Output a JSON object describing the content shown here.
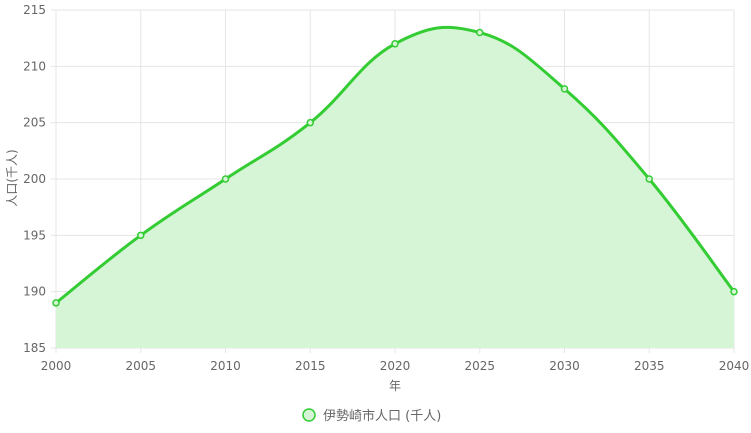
{
  "chart_data": {
    "type": "area",
    "x": [
      2000,
      2005,
      2010,
      2015,
      2020,
      2025,
      2030,
      2035,
      2040
    ],
    "series": [
      {
        "name": "伊勢崎市人口 (千人)",
        "values": [
          189,
          195,
          200,
          205,
          212,
          213,
          208,
          200,
          190
        ],
        "line_color": "#33cc33",
        "fill_color": "#d6f5d6"
      }
    ],
    "xlabel": "年",
    "ylabel": "人口(千人)",
    "xlim": [
      2000,
      2040
    ],
    "ylim": [
      185,
      215
    ],
    "x_ticks": [
      2000,
      2005,
      2010,
      2015,
      2020,
      2025,
      2030,
      2035,
      2040
    ],
    "y_ticks": [
      185,
      190,
      195,
      200,
      205,
      210,
      215
    ],
    "grid": true,
    "legend": "bottom"
  },
  "colors": {
    "grid": "#e5e5e5",
    "tick_text": "#666666"
  }
}
